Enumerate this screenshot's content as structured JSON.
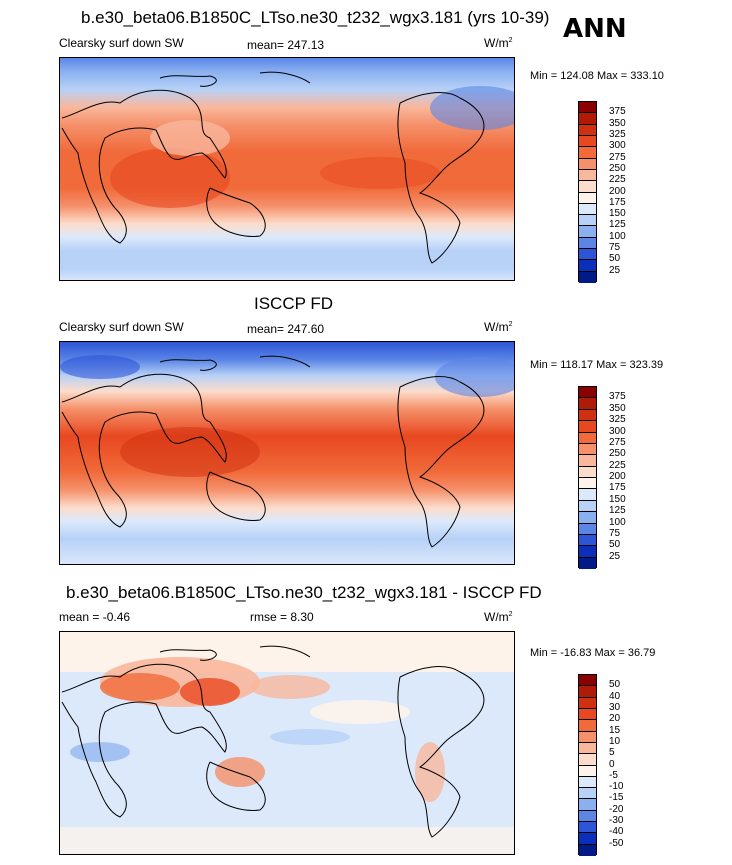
{
  "ann_label": "ANN",
  "panels": [
    {
      "title": "b.e30_beta06.B1850C_LTso.ne30_t232_wgx3.181 (yrs 10-39)",
      "left_label": "Clearsky surf down SW",
      "center_label": "mean= 247.13",
      "units": "W/m",
      "units_sup": "2",
      "minmax": "Min = 124.08 Max = 333.10",
      "colorbar": {
        "labels": [
          "375",
          "350",
          "325",
          "300",
          "275",
          "250",
          "225",
          "200",
          "175",
          "150",
          "125",
          "100",
          "75",
          "50",
          "25"
        ],
        "colors": [
          "#8b0000",
          "#b01a06",
          "#cf3010",
          "#e84820",
          "#f06a3a",
          "#f5906a",
          "#f9b79c",
          "#fcdccb",
          "#fdf3ea",
          "#dce9fb",
          "#b7d1f7",
          "#8ab0f0",
          "#5b86e6",
          "#2d55d7",
          "#0a2fb8",
          "#001a88"
        ]
      }
    },
    {
      "title": "ISCCP FD",
      "left_label": "Clearsky surf down SW",
      "center_label": "mean= 247.60",
      "units": "W/m",
      "units_sup": "2",
      "minmax": "Min = 118.17 Max = 323.39",
      "colorbar": {
        "labels": [
          "375",
          "350",
          "325",
          "300",
          "275",
          "250",
          "225",
          "200",
          "175",
          "150",
          "125",
          "100",
          "75",
          "50",
          "25"
        ],
        "colors": [
          "#8b0000",
          "#b01a06",
          "#cf3010",
          "#e84820",
          "#f06a3a",
          "#f5906a",
          "#f9b79c",
          "#fcdccb",
          "#fdf3ea",
          "#dce9fb",
          "#b7d1f7",
          "#8ab0f0",
          "#5b86e6",
          "#2d55d7",
          "#0a2fb8",
          "#001a88"
        ]
      }
    },
    {
      "title": "b.e30_beta06.B1850C_LTso.ne30_t232_wgx3.181 - ISCCP FD",
      "left_label": "mean =  -0.46",
      "center_label": "rmse =   8.30",
      "units": "W/m",
      "units_sup": "2",
      "minmax": "Min = -16.83 Max =  36.79",
      "colorbar": {
        "labels": [
          "50",
          "40",
          "30",
          "20",
          "15",
          "10",
          "5",
          "0",
          "-5",
          "-10",
          "-15",
          "-20",
          "-30",
          "-40",
          "-50"
        ],
        "colors": [
          "#8b0000",
          "#b01a06",
          "#cf3010",
          "#e84820",
          "#f06a3a",
          "#f5906a",
          "#f9b79c",
          "#fcdccb",
          "#fdf3ea",
          "#dce9fb",
          "#b7d1f7",
          "#8ab0f0",
          "#5b86e6",
          "#2d55d7",
          "#0a2fb8",
          "#001a88"
        ]
      }
    }
  ]
}
